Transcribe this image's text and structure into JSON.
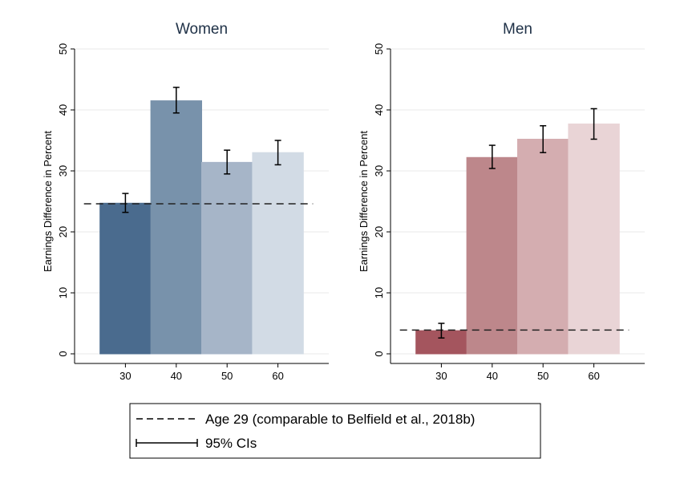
{
  "chart_data": [
    {
      "type": "bar",
      "title": "Women",
      "xlabel": "",
      "ylabel": "Earnings Difference in Percent",
      "ylim": [
        0,
        50
      ],
      "yticks": [
        0,
        10,
        20,
        30,
        40,
        50
      ],
      "xlim": [
        20,
        70
      ],
      "categories": [
        "30",
        "40",
        "50",
        "60"
      ],
      "x": [
        30,
        40,
        50,
        60
      ],
      "values": [
        24.7,
        41.5,
        31.4,
        33.0
      ],
      "ci_low": [
        23.2,
        39.5,
        29.5,
        31.0
      ],
      "ci_high": [
        26.3,
        43.7,
        33.4,
        35.0
      ],
      "reference_line": 24.6,
      "colors": [
        "#4a6b8e",
        "#7892ab",
        "#a6b5c8",
        "#d2dbe5"
      ],
      "grid": true
    },
    {
      "type": "bar",
      "title": "Men",
      "xlabel": "",
      "ylabel": "Earnings Difference in Percent",
      "ylim": [
        0,
        50
      ],
      "yticks": [
        0,
        10,
        20,
        30,
        40,
        50
      ],
      "xlim": [
        20,
        70
      ],
      "categories": [
        "30",
        "40",
        "50",
        "60"
      ],
      "x": [
        30,
        40,
        50,
        60
      ],
      "values": [
        3.8,
        32.2,
        35.2,
        37.7
      ],
      "ci_low": [
        2.6,
        30.4,
        33.0,
        35.2
      ],
      "ci_high": [
        5.0,
        34.2,
        37.4,
        40.2
      ],
      "reference_line": 3.9,
      "colors": [
        "#a4555e",
        "#bd878b",
        "#d4adb0",
        "#e9d4d6"
      ],
      "grid": true
    }
  ],
  "legend": {
    "dashed_label": "Age 29 (comparable to Belfield et al., 2018b)",
    "ci_label": "95% CIs"
  }
}
